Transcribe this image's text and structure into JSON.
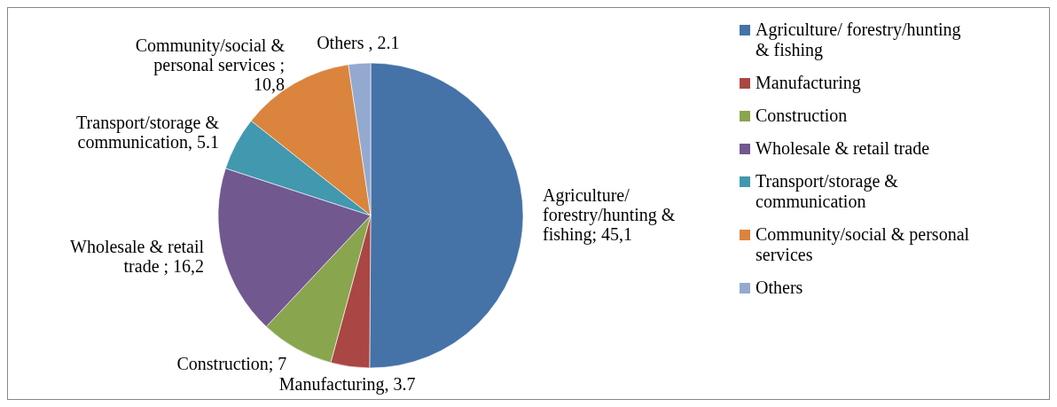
{
  "chart_data": {
    "type": "pie",
    "categories": [
      "Agriculture/ forestry/hunting & fishing",
      "Manufacturing",
      "Construction",
      "Wholesale & retail trade",
      "Transport/storage & communication",
      "Community/social & personal services",
      "Others"
    ],
    "values": [
      45.1,
      3.7,
      7,
      16.2,
      5.1,
      10.8,
      2.1
    ],
    "colors": [
      "#4572a7",
      "#aa4643",
      "#89a54e",
      "#71588f",
      "#4198af",
      "#db843d",
      "#93a9cf"
    ],
    "value_labels": [
      "Agriculture/ forestry/hunting & fishing; 45,1",
      "Manufacturing, 3.7",
      "Construction; 7",
      "Wholesale & retail trade ; 16,2",
      "Transport/storage & communication,   5.1",
      "Community/social & personal services ; 10,8",
      "Others , 2.1"
    ],
    "legend": "right"
  }
}
